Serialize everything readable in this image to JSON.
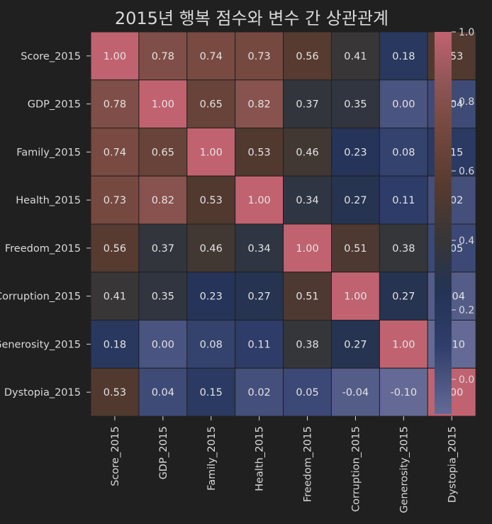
{
  "chart_data": {
    "type": "heatmap",
    "title": "2015년 행복 점수와 변수 간 상관관계",
    "xlabel": "",
    "ylabel": "",
    "row_labels": [
      "Score_2015",
      "GDP_2015",
      "Family_2015",
      "Health_2015",
      "Freedom_2015",
      "Corruption_2015",
      "Generosity_2015",
      "Dystopia_2015"
    ],
    "col_labels": [
      "Score_2015",
      "GDP_2015",
      "Family_2015",
      "Health_2015",
      "Freedom_2015",
      "Corruption_2015",
      "Generosity_2015",
      "Dystopia_2015"
    ],
    "values": [
      [
        1.0,
        0.78,
        0.74,
        0.73,
        0.56,
        0.41,
        0.18,
        0.53
      ],
      [
        0.78,
        1.0,
        0.65,
        0.82,
        0.37,
        0.35,
        0.0,
        0.04
      ],
      [
        0.74,
        0.65,
        1.0,
        0.53,
        0.46,
        0.23,
        0.08,
        0.15
      ],
      [
        0.73,
        0.82,
        0.53,
        1.0,
        0.34,
        0.27,
        0.11,
        0.02
      ],
      [
        0.56,
        0.37,
        0.46,
        0.34,
        1.0,
        0.51,
        0.38,
        0.05
      ],
      [
        0.41,
        0.35,
        0.23,
        0.27,
        0.51,
        1.0,
        0.27,
        -0.04
      ],
      [
        0.18,
        0.0,
        0.08,
        0.11,
        0.38,
        0.27,
        1.0,
        -0.1
      ],
      [
        0.53,
        0.04,
        0.15,
        0.02,
        0.05,
        -0.04,
        -0.1,
        1.0
      ]
    ],
    "annotation_format": "0.00",
    "vmin": -0.1,
    "vmax": 1.0,
    "colorbar": {
      "ticks": [
        0.0,
        0.2,
        0.4,
        0.6,
        0.8,
        1.0
      ],
      "tick_labels": [
        "0.0",
        "0.2",
        "0.4",
        "0.6",
        "0.8",
        "1.0"
      ]
    },
    "colormap": {
      "stops": [
        {
          "value": -0.1,
          "color": "#646a95"
        },
        {
          "value": 0.1,
          "color": "#2f3d6a"
        },
        {
          "value": 0.25,
          "color": "#243355"
        },
        {
          "value": 0.4,
          "color": "#363636"
        },
        {
          "value": 0.55,
          "color": "#553a2f"
        },
        {
          "value": 0.75,
          "color": "#7a4b42"
        },
        {
          "value": 0.85,
          "color": "#8e5555"
        },
        {
          "value": 1.0,
          "color": "#c16270"
        }
      ]
    },
    "grid_line_color": "#202020"
  }
}
